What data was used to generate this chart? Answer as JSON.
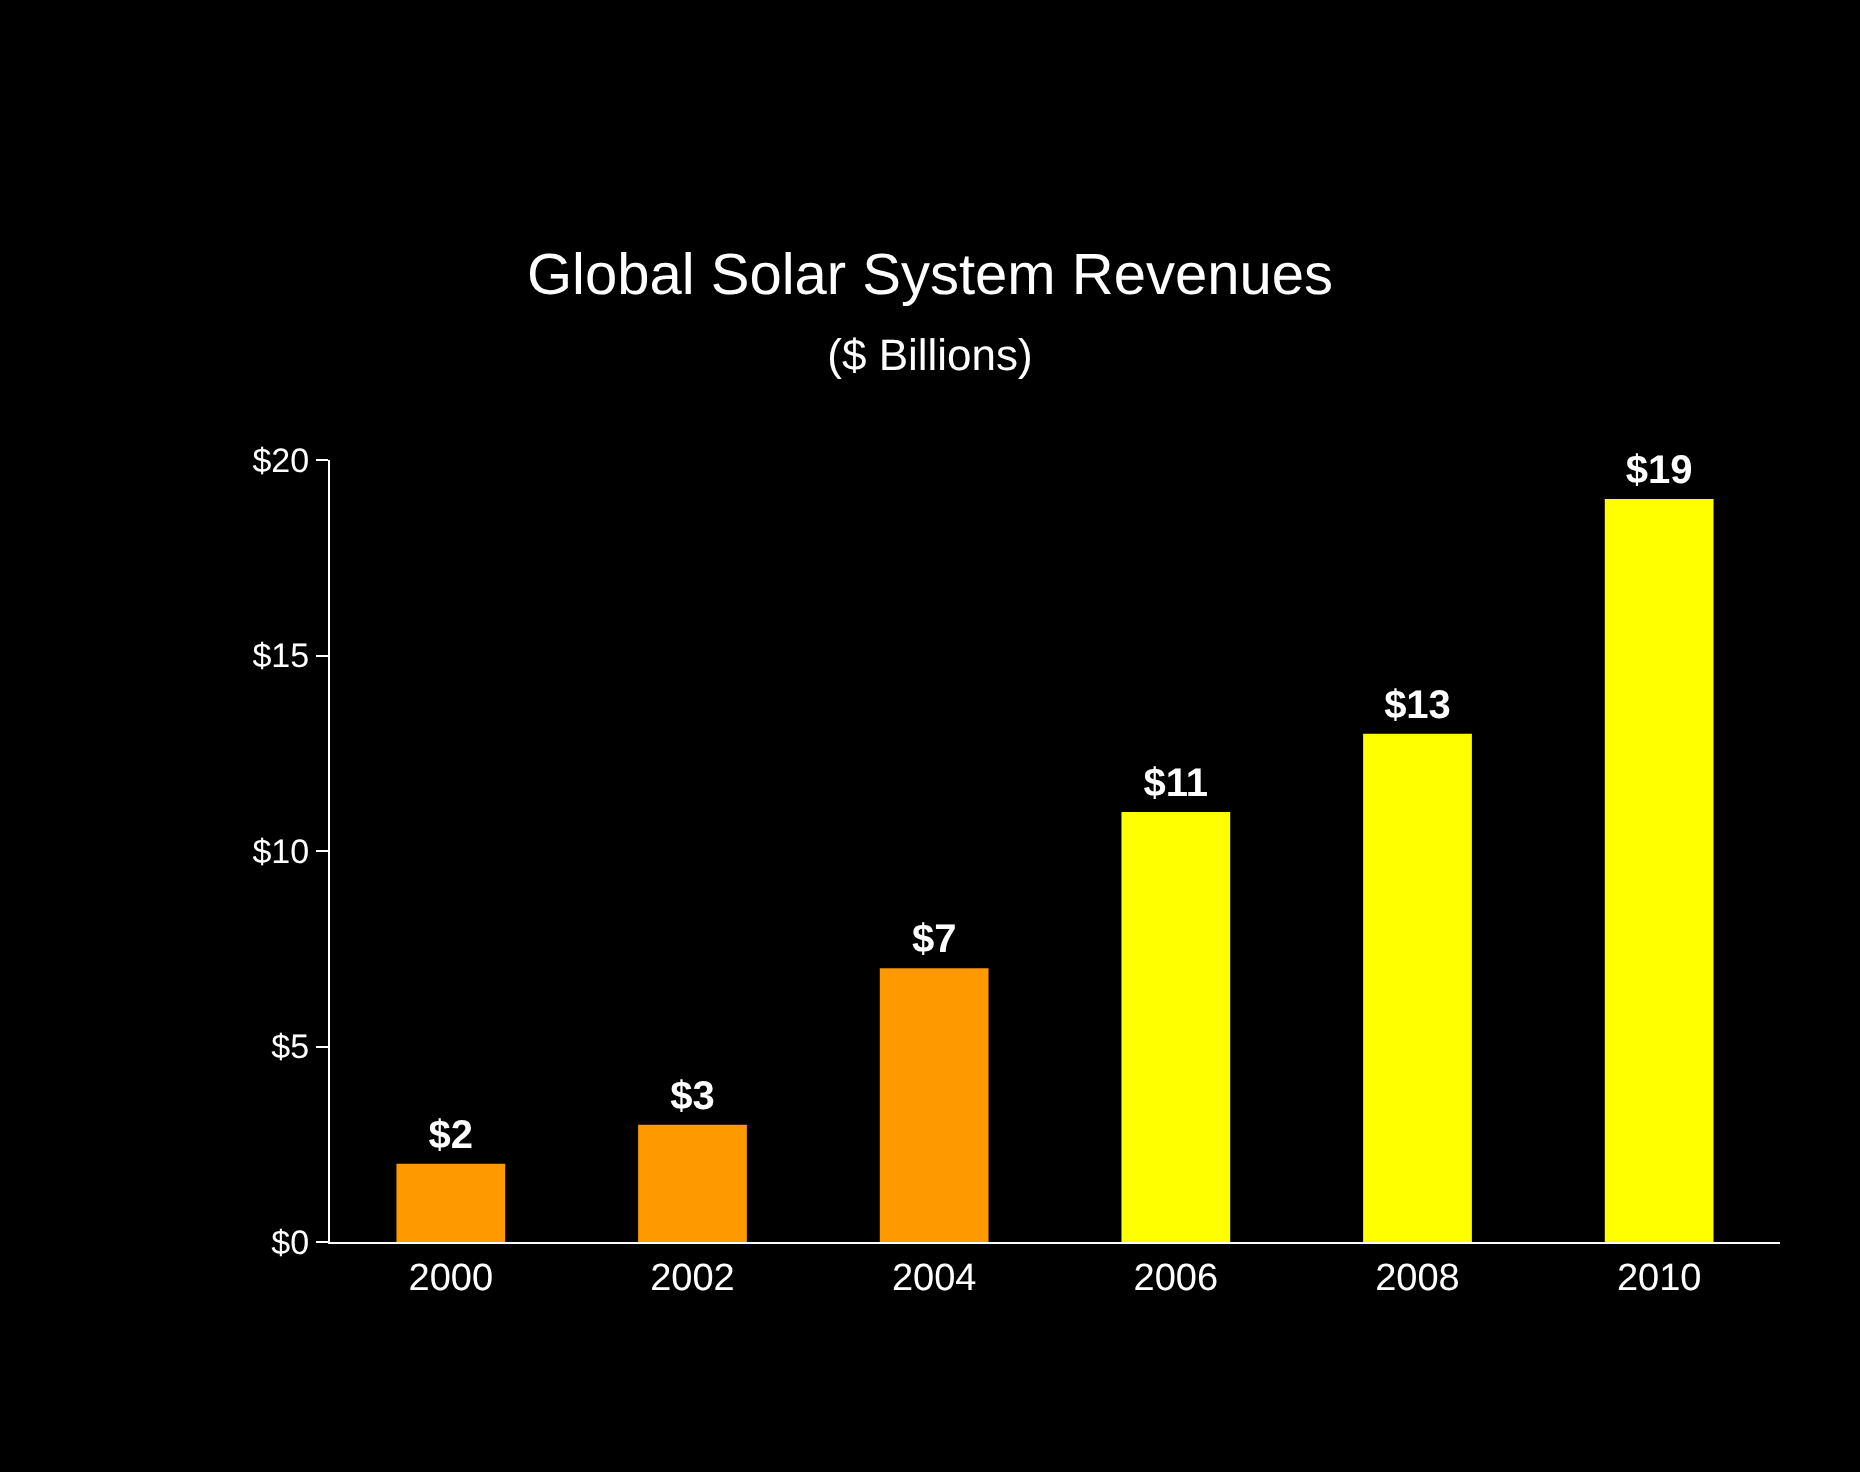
{
  "chart_data": {
    "type": "bar",
    "title": "Global Solar System Revenues",
    "subtitle": "($ Billions)",
    "categories": [
      "2000",
      "2002",
      "2004",
      "2006",
      "2008",
      "2010"
    ],
    "values": [
      2,
      3,
      7,
      11,
      13,
      19
    ],
    "colors": [
      "#ff9900",
      "#ff9900",
      "#ff9900",
      "#ffff00",
      "#ffff00",
      "#ffff00"
    ],
    "value_labels": [
      "$2",
      "$3",
      "$7",
      "$11",
      "$13",
      "$19"
    ],
    "ylim": [
      0,
      20
    ],
    "yticks": [
      {
        "value": 0,
        "label": "$0"
      },
      {
        "value": 5,
        "label": "$5"
      },
      {
        "value": 10,
        "label": "$10"
      },
      {
        "value": 15,
        "label": "$15"
      },
      {
        "value": 20,
        "label": "$20"
      }
    ],
    "grid": false
  }
}
